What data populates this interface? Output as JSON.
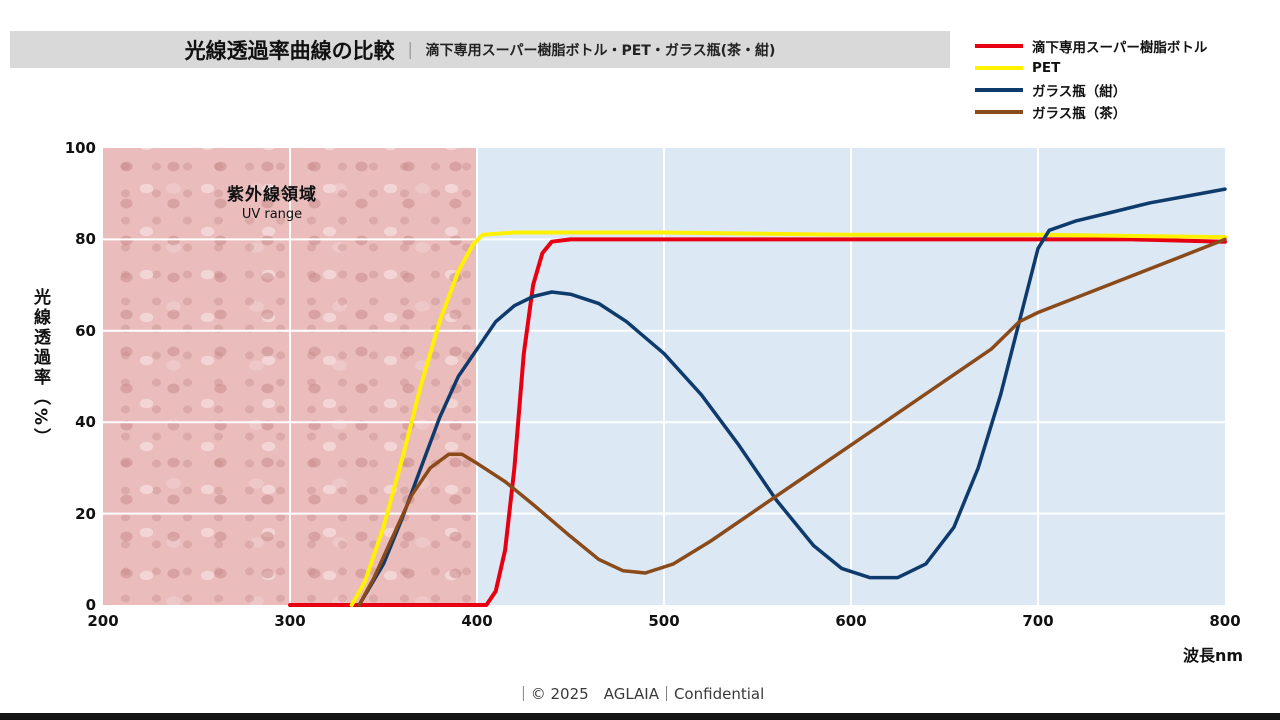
{
  "title": {
    "main": "光線透過率曲線の比較",
    "separator": "｜",
    "subtitle": "滴下専用スーパー樹脂ボトル・PET・ガラス瓶(茶・紺)"
  },
  "legend": [
    {
      "label": "滴下専用スーパー樹脂ボトル",
      "color": "#e60012"
    },
    {
      "label": "PET",
      "color": "#fff100"
    },
    {
      "label": "ガラス瓶（紺）",
      "color": "#0e3a6c"
    },
    {
      "label": "ガラス瓶（茶）",
      "color": "#8a4a1a"
    }
  ],
  "footer": {
    "text": "｜© 2025　AGLAIA｜Confidential"
  },
  "chart_data": {
    "type": "line",
    "title": "光線透過率曲線の比較",
    "xlabel": "波長nm",
    "ylabel": "光線透過率（%）",
    "xlim": [
      200,
      800
    ],
    "ylim": [
      0,
      100
    ],
    "x_ticks": [
      200,
      300,
      400,
      500,
      600,
      700,
      800
    ],
    "y_ticks": [
      0,
      20,
      40,
      60,
      80,
      100
    ],
    "grid": "white gridlines on shaded background",
    "legend_position": "top-right",
    "uv_region": {
      "label": "紫外線領域",
      "sublabel": "UV range",
      "x_range": [
        200,
        400
      ],
      "color": "#eabcbc"
    },
    "visible_region_color": "#dce9f5",
    "series": [
      {
        "name": "滴下専用スーパー樹脂ボトル",
        "color": "#e60012",
        "points": [
          [
            300,
            0
          ],
          [
            360,
            0
          ],
          [
            400,
            0
          ],
          [
            405,
            0
          ],
          [
            410,
            3
          ],
          [
            415,
            12
          ],
          [
            420,
            30
          ],
          [
            425,
            55
          ],
          [
            430,
            70
          ],
          [
            435,
            77
          ],
          [
            440,
            79.5
          ],
          [
            450,
            80
          ],
          [
            500,
            80
          ],
          [
            550,
            80
          ],
          [
            600,
            80
          ],
          [
            650,
            80
          ],
          [
            700,
            80
          ],
          [
            750,
            80
          ],
          [
            800,
            79.5
          ]
        ]
      },
      {
        "name": "PET",
        "color": "#fff100",
        "points": [
          [
            333,
            0
          ],
          [
            340,
            5
          ],
          [
            350,
            17
          ],
          [
            360,
            32
          ],
          [
            370,
            48
          ],
          [
            380,
            62
          ],
          [
            390,
            73
          ],
          [
            398,
            79
          ],
          [
            403,
            81
          ],
          [
            420,
            81.5
          ],
          [
            500,
            81.5
          ],
          [
            600,
            81
          ],
          [
            700,
            81
          ],
          [
            800,
            80.5
          ]
        ]
      },
      {
        "name": "ガラス瓶（紺）",
        "color": "#0e3a6c",
        "points": [
          [
            337,
            0
          ],
          [
            350,
            9
          ],
          [
            360,
            19
          ],
          [
            370,
            30
          ],
          [
            380,
            41
          ],
          [
            390,
            50
          ],
          [
            400,
            56
          ],
          [
            410,
            62
          ],
          [
            420,
            65.5
          ],
          [
            430,
            67.5
          ],
          [
            440,
            68.5
          ],
          [
            450,
            68
          ],
          [
            465,
            66
          ],
          [
            480,
            62
          ],
          [
            500,
            55
          ],
          [
            520,
            46
          ],
          [
            540,
            35
          ],
          [
            560,
            23
          ],
          [
            580,
            13
          ],
          [
            595,
            8
          ],
          [
            610,
            6
          ],
          [
            625,
            6
          ],
          [
            640,
            9
          ],
          [
            655,
            17
          ],
          [
            668,
            30
          ],
          [
            680,
            46
          ],
          [
            690,
            62
          ],
          [
            700,
            78
          ],
          [
            706,
            82
          ],
          [
            720,
            84
          ],
          [
            740,
            86
          ],
          [
            760,
            88
          ],
          [
            780,
            89.5
          ],
          [
            800,
            91
          ]
        ]
      },
      {
        "name": "ガラス瓶（茶）",
        "color": "#8a4a1a",
        "points": [
          [
            337,
            0
          ],
          [
            345,
            6
          ],
          [
            355,
            15
          ],
          [
            365,
            24
          ],
          [
            375,
            30
          ],
          [
            385,
            33
          ],
          [
            392,
            33
          ],
          [
            400,
            31
          ],
          [
            415,
            27
          ],
          [
            430,
            22
          ],
          [
            450,
            15
          ],
          [
            465,
            10
          ],
          [
            478,
            7.5
          ],
          [
            490,
            7
          ],
          [
            505,
            9
          ],
          [
            525,
            14
          ],
          [
            550,
            21
          ],
          [
            575,
            28
          ],
          [
            600,
            35
          ],
          [
            625,
            42
          ],
          [
            650,
            49
          ],
          [
            675,
            56
          ],
          [
            690,
            62
          ],
          [
            700,
            64
          ],
          [
            725,
            68
          ],
          [
            750,
            72
          ],
          [
            775,
            76
          ],
          [
            800,
            80
          ]
        ]
      }
    ]
  }
}
